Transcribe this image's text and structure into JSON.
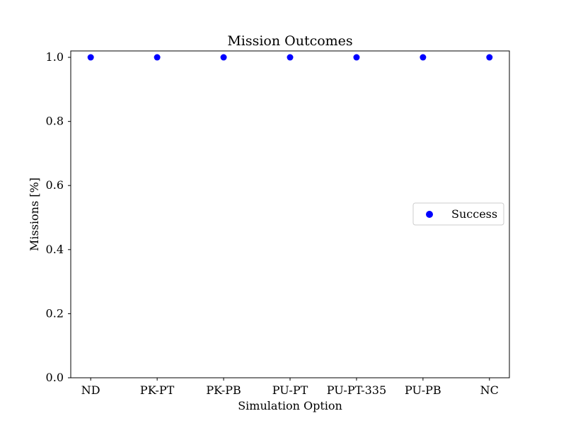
{
  "chart_data": {
    "type": "scatter",
    "title": "Mission Outcomes",
    "xlabel": "Simulation Option",
    "ylabel": "Missions [%]",
    "categories": [
      "ND",
      "PK-PT",
      "PK-PB",
      "PU-PT",
      "PU-PT-335",
      "PU-PB",
      "NC"
    ],
    "ylim": [
      0.0,
      1.02
    ],
    "yticks": [
      "0.0",
      "0.2",
      "0.4",
      "0.6",
      "0.8",
      "1.0"
    ],
    "series": [
      {
        "name": "Success",
        "color": "#0000ff",
        "values": [
          1.0,
          1.0,
          1.0,
          1.0,
          1.0,
          1.0,
          1.0
        ]
      }
    ],
    "legend": {
      "placement": "center-right"
    },
    "grid": false
  }
}
